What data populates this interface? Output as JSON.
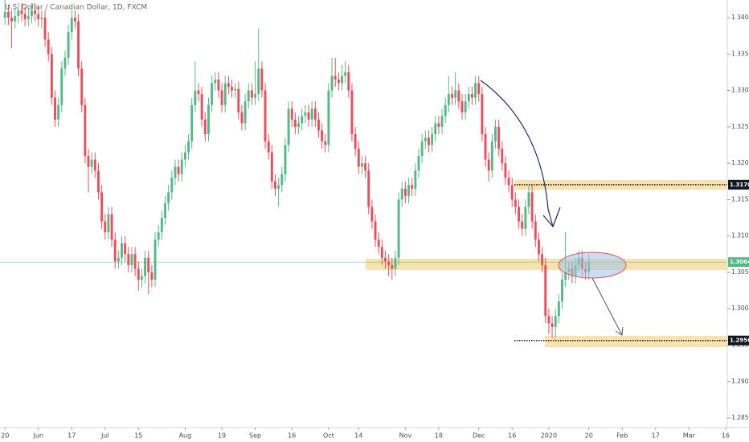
{
  "chart_data": {
    "type": "candlestick",
    "title": "U.S. Dollar / Canadian Dollar, 1D, FXCM",
    "up_color": "#53b987",
    "down_color": "#eb4d5c",
    "open": [
      1.34,
      1.3408,
      1.34,
      1.3395,
      1.3402,
      1.341,
      1.3405,
      1.3398,
      1.3402,
      1.341,
      1.3405,
      1.3398,
      1.34,
      1.337,
      1.335,
      1.329,
      1.326,
      1.328,
      1.333,
      1.3345,
      1.338,
      1.34,
      1.3395,
      1.333,
      1.328,
      1.321,
      1.3195,
      1.3205,
      1.319,
      1.316,
      1.312,
      1.3105,
      1.313,
      1.3095,
      1.3065,
      1.307,
      1.309,
      1.3075,
      1.306,
      1.3075,
      1.3055,
      1.304,
      1.3045,
      1.307,
      1.305,
      1.304,
      1.3095,
      1.3105,
      1.3125,
      1.3145,
      1.316,
      1.318,
      1.3195,
      1.3185,
      1.3205,
      1.3215,
      1.323,
      1.328,
      1.33,
      1.3295,
      1.326,
      1.324,
      1.328,
      1.331,
      1.3315,
      1.33,
      1.328,
      1.331,
      1.3305,
      1.33,
      1.3302,
      1.327,
      1.3255,
      1.3285,
      1.33,
      1.329,
      1.3295,
      1.333,
      1.33,
      1.323,
      1.3215,
      1.3175,
      1.3165,
      1.317,
      1.3185,
      1.3225,
      1.3275,
      1.326,
      1.325,
      1.3255,
      1.3265,
      1.327,
      1.326,
      1.3275,
      1.326,
      1.3245,
      1.323,
      1.3225,
      1.33,
      1.332,
      1.3315,
      1.331,
      1.332,
      1.3325,
      1.33,
      1.324,
      1.322,
      1.3195,
      1.32,
      1.319,
      1.314,
      1.312,
      1.3095,
      1.3085,
      1.307,
      1.3065,
      1.306,
      1.3055,
      1.307,
      1.315,
      1.3165,
      1.3155,
      1.317,
      1.3165,
      1.319,
      1.321,
      1.323,
      1.3235,
      1.3225,
      1.324,
      1.3255,
      1.325,
      1.3265,
      1.328,
      1.3295,
      1.329,
      1.33,
      1.3285,
      1.327,
      1.3285,
      1.3295,
      1.329,
      1.331,
      1.3295,
      1.324,
      1.3205,
      1.319,
      1.323,
      1.325,
      1.322,
      1.32,
      1.318,
      1.317,
      1.315,
      1.314,
      1.312,
      1.311,
      1.314,
      1.316,
      1.312,
      1.3095,
      1.3075,
      1.306,
      1.299,
      1.298,
      1.2975,
      1.299,
      1.301,
      1.304,
      1.305,
      1.3055,
      1.3045,
      1.306,
      1.307,
      1.3055,
      1.305
    ],
    "high": [
      1.3425,
      1.3418,
      1.341,
      1.3412,
      1.342,
      1.342,
      1.3415,
      1.3412,
      1.342,
      1.342,
      1.3415,
      1.341,
      1.341,
      1.338,
      1.336,
      1.33,
      1.329,
      1.334,
      1.3355,
      1.339,
      1.341,
      1.341,
      1.3405,
      1.334,
      1.329,
      1.322,
      1.3215,
      1.3215,
      1.32,
      1.317,
      1.313,
      1.314,
      1.314,
      1.3105,
      1.308,
      1.31,
      1.31,
      1.3085,
      1.3085,
      1.3085,
      1.3065,
      1.3055,
      1.308,
      1.308,
      1.306,
      1.3105,
      1.3115,
      1.3135,
      1.3155,
      1.317,
      1.319,
      1.3205,
      1.3205,
      1.3215,
      1.3225,
      1.324,
      1.329,
      1.334,
      1.331,
      1.3305,
      1.327,
      1.329,
      1.332,
      1.3325,
      1.3325,
      1.331,
      1.332,
      1.332,
      1.3315,
      1.331,
      1.3312,
      1.328,
      1.3295,
      1.331,
      1.331,
      1.334,
      1.3385,
      1.334,
      1.331,
      1.324,
      1.3225,
      1.3185,
      1.318,
      1.3195,
      1.3235,
      1.3285,
      1.3285,
      1.327,
      1.3265,
      1.3275,
      1.328,
      1.328,
      1.3285,
      1.3285,
      1.327,
      1.3255,
      1.324,
      1.331,
      1.3345,
      1.3345,
      1.3325,
      1.3335,
      1.334,
      1.3335,
      1.331,
      1.325,
      1.323,
      1.321,
      1.321,
      1.32,
      1.315,
      1.313,
      1.3105,
      1.3095,
      1.308,
      1.3075,
      1.307,
      1.308,
      1.316,
      1.3175,
      1.3175,
      1.318,
      1.318,
      1.32,
      1.322,
      1.324,
      1.3245,
      1.3245,
      1.325,
      1.3265,
      1.3265,
      1.3275,
      1.329,
      1.332,
      1.3305,
      1.3325,
      1.331,
      1.3295,
      1.3295,
      1.3305,
      1.3305,
      1.332,
      1.332,
      1.3305,
      1.325,
      1.3215,
      1.324,
      1.326,
      1.326,
      1.323,
      1.321,
      1.319,
      1.318,
      1.316,
      1.315,
      1.313,
      1.315,
      1.317,
      1.317,
      1.313,
      1.3105,
      1.3085,
      1.307,
      1.3,
      1.299,
      1.3,
      1.302,
      1.305,
      1.3105,
      1.3065,
      1.3065,
      1.307,
      1.308,
      1.308,
      1.3065,
      1.3075
    ],
    "low": [
      1.339,
      1.339,
      1.3358,
      1.3385,
      1.3392,
      1.3395,
      1.3388,
      1.3388,
      1.3392,
      1.3395,
      1.3388,
      1.3385,
      1.336,
      1.334,
      1.328,
      1.325,
      1.325,
      1.327,
      1.332,
      1.3335,
      1.337,
      1.3385,
      1.332,
      1.327,
      1.32,
      1.316,
      1.3185,
      1.318,
      1.315,
      1.311,
      1.3095,
      1.3095,
      1.3085,
      1.3055,
      1.3055,
      1.306,
      1.3065,
      1.305,
      1.305,
      1.3045,
      1.3025,
      1.303,
      1.3035,
      1.302,
      1.303,
      1.303,
      1.3085,
      1.3095,
      1.3115,
      1.3135,
      1.315,
      1.317,
      1.3175,
      1.3175,
      1.3195,
      1.3205,
      1.322,
      1.327,
      1.3285,
      1.325,
      1.323,
      1.323,
      1.327,
      1.33,
      1.329,
      1.327,
      1.327,
      1.3295,
      1.329,
      1.329,
      1.326,
      1.3245,
      1.3245,
      1.3275,
      1.328,
      1.328,
      1.3285,
      1.329,
      1.322,
      1.3205,
      1.3165,
      1.3155,
      1.314,
      1.316,
      1.3175,
      1.3215,
      1.325,
      1.324,
      1.324,
      1.3245,
      1.3255,
      1.325,
      1.325,
      1.325,
      1.3235,
      1.322,
      1.3215,
      1.3215,
      1.329,
      1.3305,
      1.33,
      1.33,
      1.331,
      1.329,
      1.323,
      1.321,
      1.3185,
      1.3185,
      1.318,
      1.313,
      1.311,
      1.3085,
      1.3075,
      1.306,
      1.3055,
      1.3045,
      1.304,
      1.3045,
      1.306,
      1.314,
      1.3145,
      1.3145,
      1.3155,
      1.3155,
      1.318,
      1.32,
      1.322,
      1.3215,
      1.3215,
      1.323,
      1.324,
      1.324,
      1.3255,
      1.327,
      1.328,
      1.328,
      1.3275,
      1.326,
      1.326,
      1.3275,
      1.328,
      1.328,
      1.3285,
      1.323,
      1.3195,
      1.3175,
      1.318,
      1.322,
      1.321,
      1.319,
      1.317,
      1.316,
      1.314,
      1.313,
      1.311,
      1.31,
      1.31,
      1.313,
      1.311,
      1.3085,
      1.3065,
      1.305,
      1.298,
      1.2965,
      1.296,
      1.296,
      1.298,
      1.3,
      1.303,
      1.304,
      1.3035,
      1.3035,
      1.305,
      1.3045,
      1.304,
      1.304
    ],
    "close": [
      1.3408,
      1.34,
      1.3395,
      1.3402,
      1.341,
      1.3405,
      1.3398,
      1.3402,
      1.341,
      1.3405,
      1.3398,
      1.34,
      1.337,
      1.335,
      1.329,
      1.326,
      1.328,
      1.333,
      1.3345,
      1.338,
      1.34,
      1.3395,
      1.333,
      1.328,
      1.321,
      1.3195,
      1.3205,
      1.319,
      1.316,
      1.312,
      1.3105,
      1.313,
      1.3095,
      1.3065,
      1.307,
      1.309,
      1.3075,
      1.306,
      1.3075,
      1.3055,
      1.304,
      1.3045,
      1.307,
      1.305,
      1.304,
      1.3095,
      1.3105,
      1.3125,
      1.3145,
      1.316,
      1.318,
      1.3195,
      1.3185,
      1.3205,
      1.3215,
      1.323,
      1.328,
      1.33,
      1.3295,
      1.326,
      1.324,
      1.328,
      1.331,
      1.3315,
      1.33,
      1.328,
      1.331,
      1.3305,
      1.33,
      1.3302,
      1.327,
      1.3255,
      1.3285,
      1.33,
      1.329,
      1.3295,
      1.333,
      1.33,
      1.323,
      1.3215,
      1.3175,
      1.3165,
      1.317,
      1.3185,
      1.3225,
      1.3275,
      1.326,
      1.325,
      1.3255,
      1.3265,
      1.327,
      1.326,
      1.3275,
      1.326,
      1.3245,
      1.323,
      1.3225,
      1.33,
      1.332,
      1.3315,
      1.331,
      1.332,
      1.3325,
      1.33,
      1.324,
      1.322,
      1.3195,
      1.32,
      1.319,
      1.314,
      1.312,
      1.3095,
      1.3085,
      1.307,
      1.3065,
      1.306,
      1.3055,
      1.307,
      1.315,
      1.3165,
      1.3155,
      1.317,
      1.3165,
      1.319,
      1.321,
      1.323,
      1.3235,
      1.3225,
      1.324,
      1.3255,
      1.325,
      1.3265,
      1.328,
      1.3295,
      1.329,
      1.33,
      1.3285,
      1.327,
      1.3285,
      1.3295,
      1.329,
      1.331,
      1.3295,
      1.324,
      1.3205,
      1.319,
      1.323,
      1.325,
      1.322,
      1.32,
      1.318,
      1.317,
      1.315,
      1.314,
      1.312,
      1.311,
      1.314,
      1.316,
      1.312,
      1.3095,
      1.3075,
      1.306,
      1.299,
      1.298,
      1.2975,
      1.299,
      1.301,
      1.304,
      1.305,
      1.3055,
      1.3045,
      1.306,
      1.307,
      1.3055,
      1.305,
      1.3064
    ],
    "xlim": [
      -1.5,
      216.5
    ],
    "xticks": [
      {
        "value": 0,
        "label": "20"
      },
      {
        "value": 10,
        "label": "Jun"
      },
      {
        "value": 20,
        "label": "17"
      },
      {
        "value": 30,
        "label": "Jul"
      },
      {
        "value": 40,
        "label": "15"
      },
      {
        "value": 54,
        "label": "Aug"
      },
      {
        "value": 65,
        "label": "19"
      },
      {
        "value": 75,
        "label": "Sep"
      },
      {
        "value": 86,
        "label": "16"
      },
      {
        "value": 97,
        "label": "Oct"
      },
      {
        "value": 106,
        "label": "14"
      },
      {
        "value": 120,
        "label": "Nov"
      },
      {
        "value": 130,
        "label": "18"
      },
      {
        "value": 142,
        "label": "Dec"
      },
      {
        "value": 152,
        "label": "16"
      },
      {
        "value": 163,
        "label": "2020"
      },
      {
        "value": 175,
        "label": "20"
      },
      {
        "value": 185,
        "label": "Feb"
      },
      {
        "value": 195,
        "label": "17"
      },
      {
        "value": 205,
        "label": "Mar"
      },
      {
        "value": 216,
        "label": "16"
      }
    ],
    "ylim": [
      1.28368,
      1.34243
    ],
    "yticks": [
      {
        "value": 1.285,
        "label": "1.28500"
      },
      {
        "value": 1.29,
        "label": "1.29000"
      },
      {
        "value": 1.295,
        "label": "1.29500"
      },
      {
        "value": 1.3,
        "label": "1.30000"
      },
      {
        "value": 1.305,
        "label": "1.30500"
      },
      {
        "value": 1.31,
        "label": "1.31000"
      },
      {
        "value": 1.315,
        "label": "1.31500"
      },
      {
        "value": 1.32,
        "label": "1.32000"
      },
      {
        "value": 1.325,
        "label": "1.32500"
      },
      {
        "value": 1.33,
        "label": "1.33000"
      },
      {
        "value": 1.335,
        "label": "1.33500"
      },
      {
        "value": 1.34,
        "label": "1.34000"
      }
    ],
    "grid": false,
    "levels": [
      {
        "value": 1.31705,
        "label": "1.31705",
        "color": "#131722",
        "style": "dotted"
      },
      {
        "value": 1.30641,
        "label": "1.30641",
        "color": "#53b987",
        "style": "solid"
      },
      {
        "value": 1.29564,
        "label": "1.29564",
        "color": "#131722",
        "style": "dotted"
      }
    ]
  }
}
